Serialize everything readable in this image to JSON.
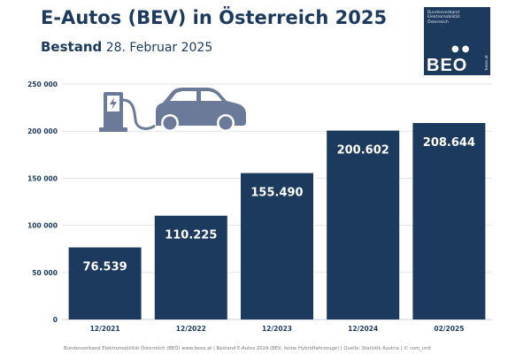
{
  "header": {
    "title": "E-Autos (BEV) in Österreich 2025",
    "subtitle_strong": "Bestand",
    "subtitle_date": "28. Februar 2025"
  },
  "logo": {
    "text_lines": [
      "Bundesverband",
      "Elektromobilität",
      "Österreich"
    ],
    "word": "BEO",
    "url": "beoe.at",
    "background": "#1b3a5e"
  },
  "illustration": {
    "icons": [
      "charging-station-icon",
      "electric-car-icon"
    ],
    "color": "#6b7a99"
  },
  "colors": {
    "bar": "#1b3a5e",
    "title": "#1b3a5e",
    "grid": "#e2e5ea"
  },
  "chart_data": {
    "type": "bar",
    "categories": [
      "12/2021",
      "12/2022",
      "12/2023",
      "12/2024",
      "02/2025"
    ],
    "values": [
      76539,
      110225,
      155490,
      200602,
      208644
    ],
    "data_labels": [
      "76.539",
      "110.225",
      "155.490",
      "200.602",
      "208.644"
    ],
    "yticks": [
      0,
      50000,
      100000,
      150000,
      200000,
      250000
    ],
    "ytick_labels": [
      "0",
      "50 000",
      "100 000",
      "150 000",
      "200 000",
      "250 000"
    ],
    "ylim": [
      0,
      250000
    ],
    "grid": true,
    "legend": "none",
    "title": "E-Autos (BEV) in Österreich 2025",
    "xlabel": "",
    "ylabel": ""
  },
  "footer": {
    "text": "Bundesverband Elektromobilität Österreich (BEÖ) www.beoe.at | Bestand E-Autos 2024 (BEV, keine Hybridfahrzeuge) | Quelle: Statistik Austria | © com_unit"
  }
}
